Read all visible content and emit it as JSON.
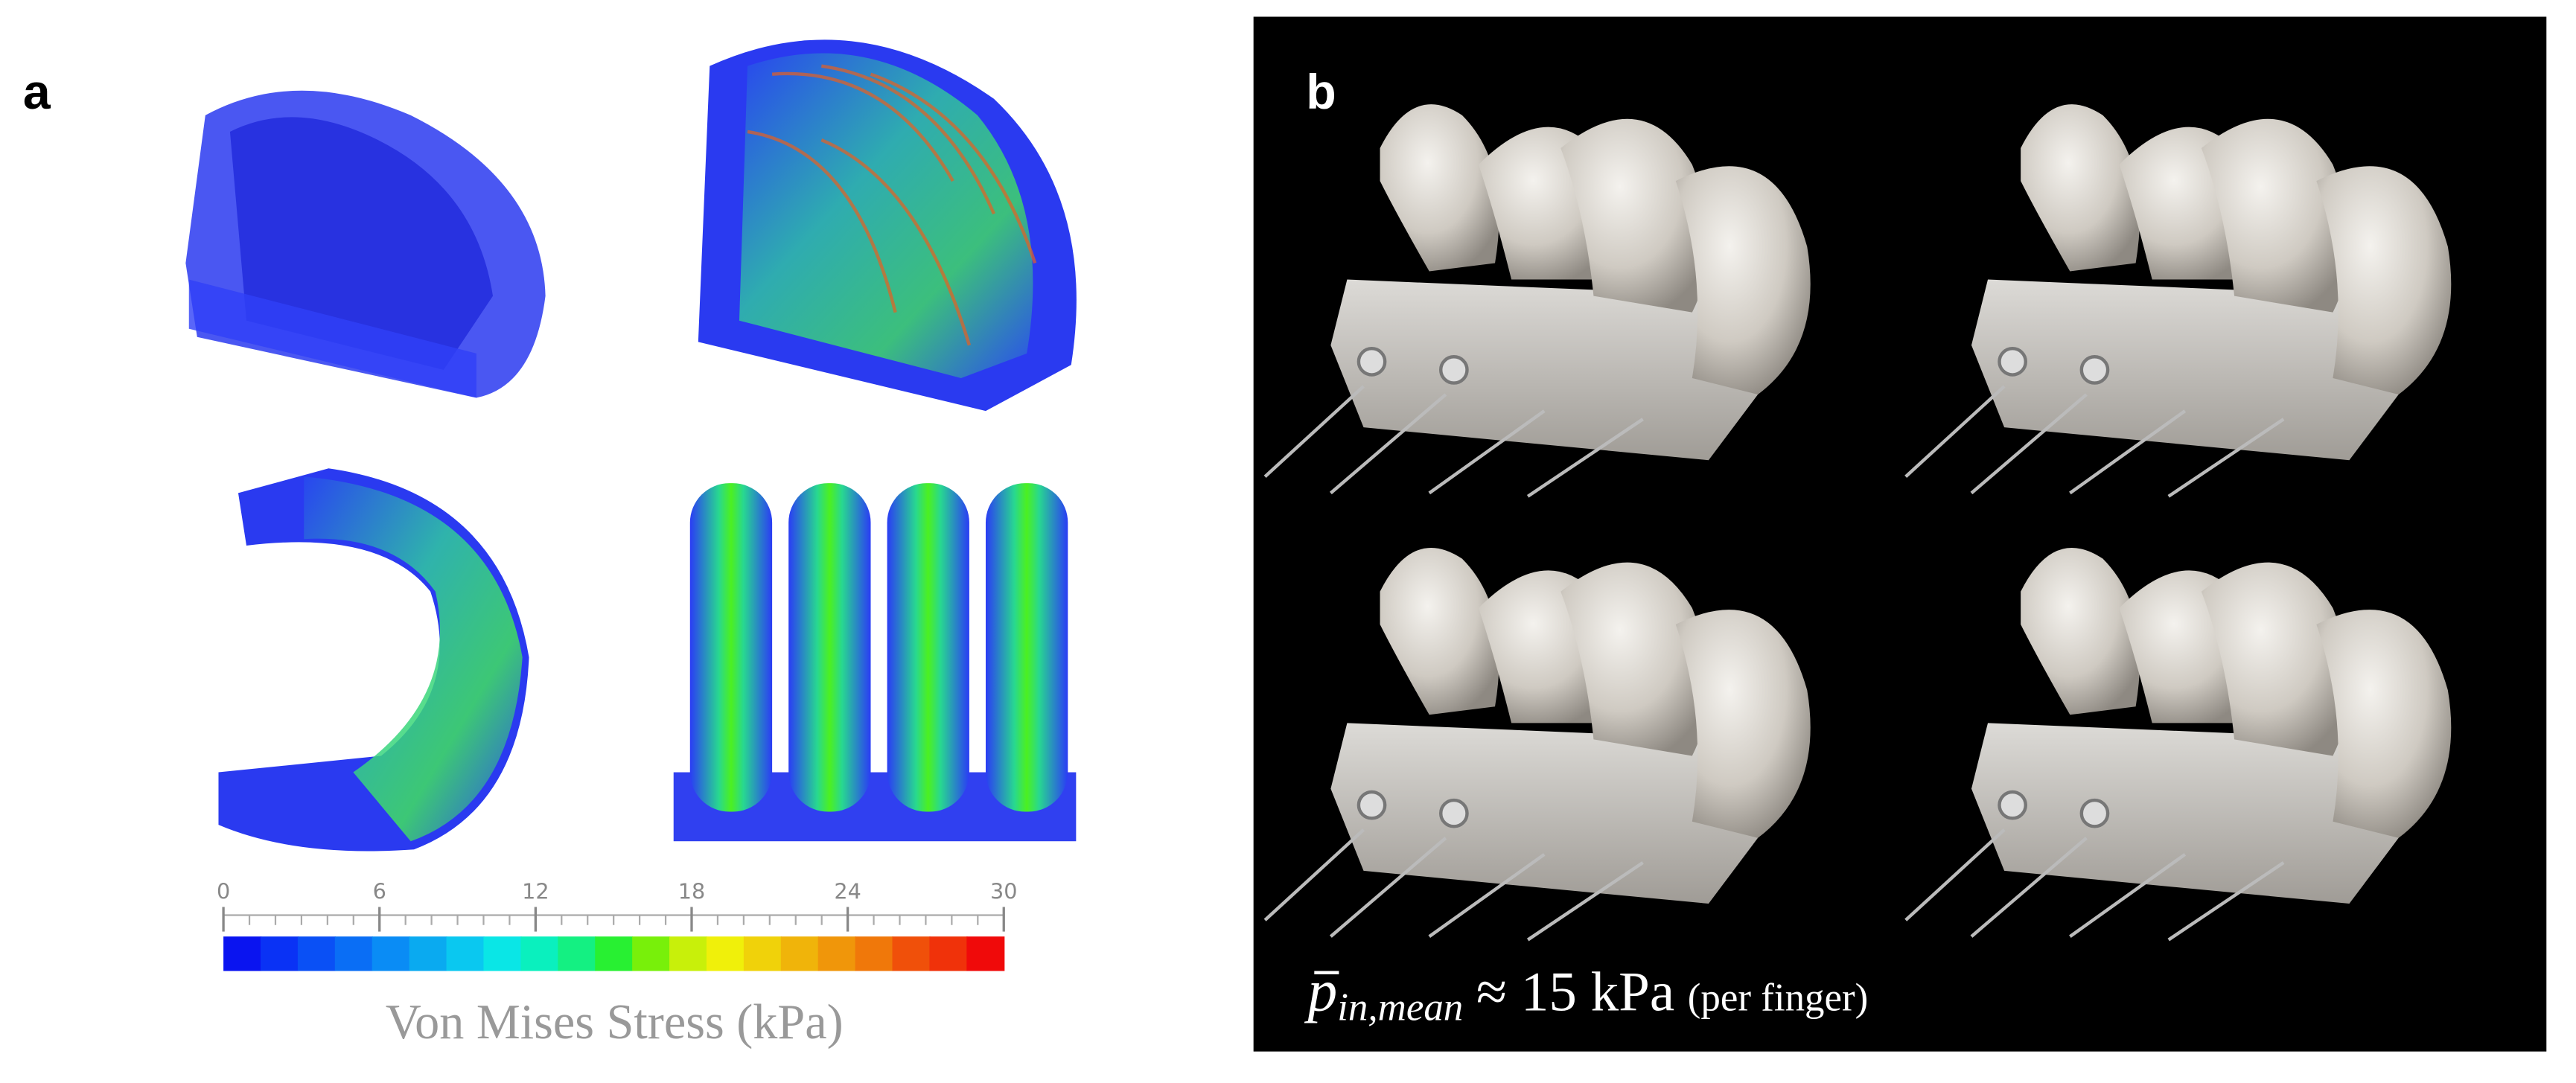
{
  "panel_a": {
    "label": "a",
    "colorbar": {
      "lim": [
        0,
        30
      ],
      "ticks": [
        0,
        6,
        12,
        18,
        24,
        30
      ],
      "title": "Von Mises Stress (kPa)",
      "colors": [
        "#0a14f0",
        "#0a32f5",
        "#0a50f5",
        "#0a6ef5",
        "#0a8cf5",
        "#0aaaf0",
        "#0ac8f0",
        "#0ae6e6",
        "#0af0be",
        "#14f082",
        "#28f032",
        "#78f00a",
        "#c8f00a",
        "#f0f00a",
        "#f0d20a",
        "#f0b40a",
        "#f0960a",
        "#f0780a",
        "#f0500a",
        "#f0320a",
        "#f00a0a"
      ]
    }
  },
  "panel_b": {
    "label": "b",
    "caption": {
      "symbol": "p",
      "subscript": "in,mean",
      "relation": "≈ 15 kPa",
      "note": "(per finger)"
    }
  }
}
